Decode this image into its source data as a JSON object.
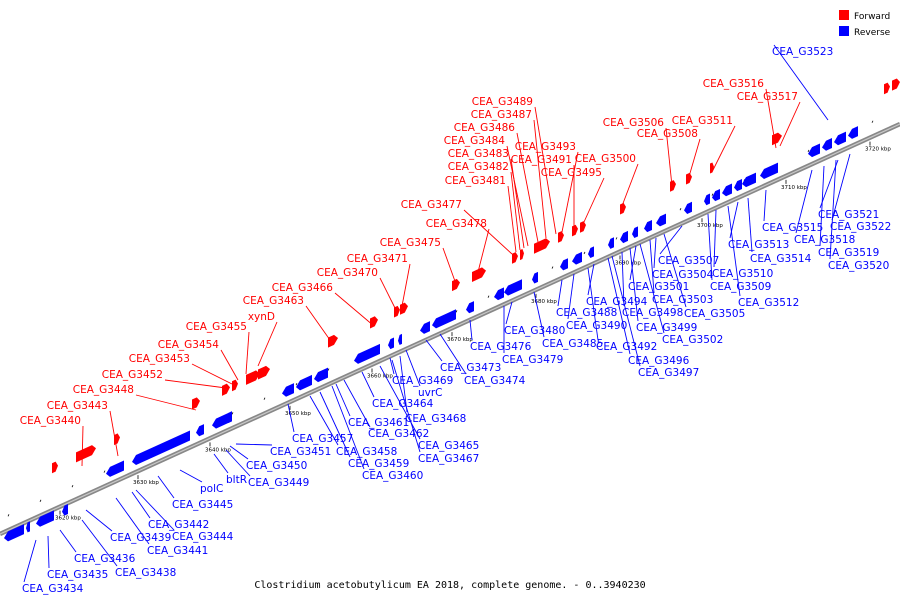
{
  "legend": {
    "forward_label": "Forward",
    "reverse_label": "Reverse",
    "forward_color": "#ff0000",
    "reverse_color": "#0000ff"
  },
  "caption": "Clostridium acetobutylicum EA 2018, complete genome. - 0..3940230",
  "scale_ticks": [
    "3620 kbp",
    "3630 kbp",
    "3640 kbp",
    "3650 kbp",
    "3660 kbp",
    "3670 kbp",
    "3680 kbp",
    "3690 kbp",
    "3700 kbp",
    "3710 kbp",
    "3720 kbp"
  ],
  "forward_genes": [
    "CEA_G3440",
    "CEA_G3443",
    "CEA_G3448",
    "CEA_G3452",
    "CEA_G3453",
    "CEA_G3454",
    "CEA_G3455",
    "xynD",
    "CEA_G3463",
    "CEA_G3466",
    "CEA_G3470",
    "CEA_G3471",
    "CEA_G3475",
    "CEA_G3478",
    "CEA_G3477",
    "CEA_G3481",
    "CEA_G3482",
    "CEA_G3483",
    "CEA_G3484",
    "CEA_G3486",
    "CEA_G3487",
    "CEA_G3489",
    "CEA_G3491",
    "CEA_G3493",
    "CEA_G3495",
    "CEA_G3500",
    "CEA_G3506",
    "CEA_G3508",
    "CEA_G3511",
    "CEA_G3516",
    "CEA_G3517"
  ],
  "reverse_genes": [
    "CEA_G3434",
    "CEA_G3435",
    "CEA_G3436",
    "CEA_G3438",
    "CEA_G3439",
    "CEA_G3441",
    "CEA_G3442",
    "CEA_G3444",
    "CEA_G3445",
    "polC",
    "bltR",
    "CEA_G3449",
    "CEA_G3450",
    "CEA_G3451",
    "CEA_G3457",
    "CEA_G3458",
    "CEA_G3459",
    "CEA_G3460",
    "CEA_G3461",
    "CEA_G3462",
    "CEA_G3464",
    "CEA_G3465",
    "CEA_G3467",
    "CEA_G3468",
    "CEA_G3469",
    "uvrC",
    "CEA_G3473",
    "CEA_G3474",
    "CEA_G3476",
    "CEA_G3479",
    "CEA_G3480",
    "CEA_G3485",
    "CEA_G3488",
    "CEA_G3490",
    "CEA_G3492",
    "CEA_G3494",
    "CEA_G3496",
    "CEA_G3497",
    "CEA_G3498",
    "CEA_G3499",
    "CEA_G3501",
    "CEA_G3502",
    "CEA_G3503",
    "CEA_G3504",
    "CEA_G3505",
    "CEA_G3507",
    "CEA_G3509",
    "CEA_G3510",
    "CEA_G3512",
    "CEA_G3513",
    "CEA_G3514",
    "CEA_G3515",
    "CEA_G3518",
    "CEA_G3519",
    "CEA_G3520",
    "CEA_G3521",
    "CEA_G3522",
    "CEA_G3523"
  ]
}
